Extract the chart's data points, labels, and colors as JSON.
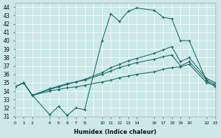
{
  "xlabel": "Humidex (Indice chaleur)",
  "bg_color": "#cce8e8",
  "grid_color": "#ffffff",
  "line_color": "#1a6b6b",
  "xlim": [
    0,
    23
  ],
  "ylim": [
    31,
    44.5
  ],
  "yticks": [
    31,
    32,
    33,
    34,
    35,
    36,
    37,
    38,
    39,
    40,
    41,
    42,
    43,
    44
  ],
  "xticks": [
    0,
    1,
    2,
    4,
    5,
    6,
    7,
    8,
    10,
    11,
    12,
    13,
    14,
    16,
    17,
    18,
    19,
    20,
    22,
    23
  ],
  "xtick_labels": [
    "0",
    "1",
    "2",
    "4",
    "5",
    "6",
    "7",
    "8",
    "10",
    "11",
    "12",
    "13",
    "14",
    "16",
    "17",
    "18",
    "19",
    "20",
    "22",
    "23"
  ],
  "series": [
    {
      "x": [
        0,
        1,
        2,
        4,
        5,
        6,
        7,
        8,
        10,
        11,
        12,
        13,
        14,
        16,
        17,
        18,
        19,
        20,
        22,
        23
      ],
      "y": [
        34.5,
        35.0,
        33.5,
        31.2,
        32.2,
        31.1,
        32.0,
        31.8,
        40.0,
        43.2,
        42.3,
        43.5,
        43.9,
        43.6,
        42.8,
        42.6,
        40.0,
        40.0,
        35.2,
        34.5
      ]
    },
    {
      "x": [
        0,
        1,
        2,
        4,
        5,
        6,
        7,
        8,
        10,
        11,
        12,
        13,
        14,
        16,
        17,
        18,
        19,
        20,
        22,
        23
      ],
      "y": [
        34.5,
        35.0,
        33.5,
        34.2,
        34.5,
        34.8,
        35.1,
        35.4,
        36.2,
        36.8,
        37.2,
        37.6,
        37.9,
        38.5,
        38.9,
        39.3,
        37.5,
        38.0,
        35.5,
        35.0
      ]
    },
    {
      "x": [
        0,
        1,
        2,
        4,
        5,
        6,
        7,
        8,
        10,
        11,
        12,
        13,
        14,
        16,
        17,
        18,
        19,
        20,
        22,
        23
      ],
      "y": [
        34.5,
        35.0,
        33.5,
        34.3,
        34.6,
        34.9,
        35.1,
        35.3,
        36.0,
        36.4,
        36.8,
        37.1,
        37.4,
        37.8,
        38.1,
        38.3,
        37.0,
        37.5,
        35.3,
        34.8
      ]
    },
    {
      "x": [
        0,
        1,
        2,
        4,
        5,
        6,
        7,
        8,
        10,
        11,
        12,
        13,
        14,
        16,
        17,
        18,
        19,
        20,
        22,
        23
      ],
      "y": [
        34.5,
        35.0,
        33.5,
        34.0,
        34.2,
        34.4,
        34.5,
        34.7,
        35.1,
        35.3,
        35.6,
        35.8,
        36.0,
        36.3,
        36.6,
        36.8,
        36.9,
        37.2,
        35.0,
        34.7
      ]
    }
  ]
}
